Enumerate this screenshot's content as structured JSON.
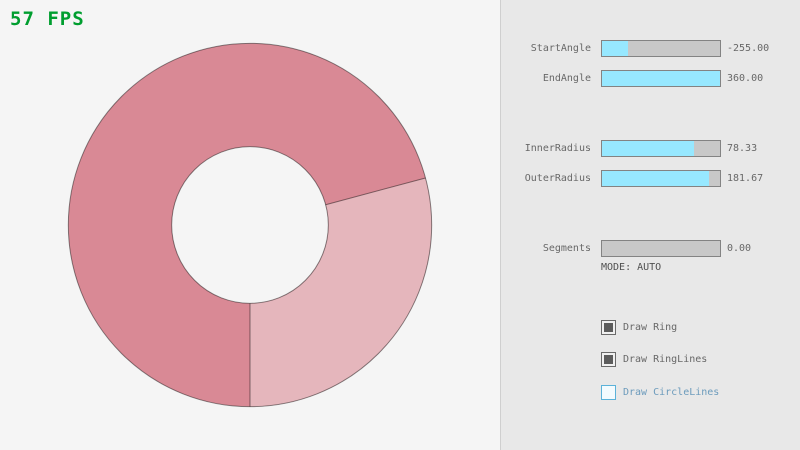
{
  "fps": {
    "text": "57 FPS",
    "color": "#009e2f"
  },
  "ring": {
    "color_once": "#e5b6bc",
    "color_overlap": "#d98995",
    "line_color": "rgba(0,0,0,0.45)"
  },
  "panel": {
    "background": "#e8e8e8",
    "accent": "#97e8ff",
    "sliders": [
      {
        "label": "StartAngle",
        "value": "-255.00",
        "fill_pct": 21.7
      },
      {
        "label": "EndAngle",
        "value": "360.00",
        "fill_pct": 100
      },
      {
        "label": "InnerRadius",
        "value": "78.33",
        "fill_pct": 78.3
      },
      {
        "label": "OuterRadius",
        "value": "181.67",
        "fill_pct": 90.8
      },
      {
        "label": "Segments",
        "value": "0.00",
        "fill_pct": 0
      }
    ],
    "mode_text": "MODE: AUTO",
    "checkboxes": [
      {
        "label": "Draw Ring",
        "checked": true,
        "focused": false
      },
      {
        "label": "Draw RingLines",
        "checked": true,
        "focused": false
      },
      {
        "label": "Draw CircleLines",
        "checked": false,
        "focused": true
      }
    ]
  }
}
